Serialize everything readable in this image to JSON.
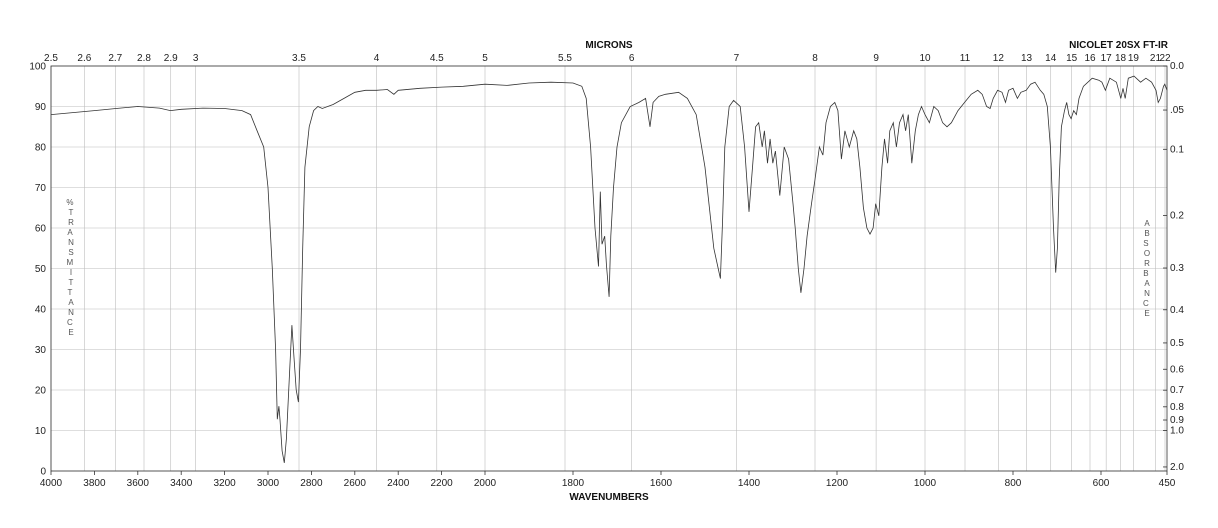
{
  "chart_data": {
    "type": "line",
    "title": "",
    "xlabel": "WAVENUMBERS",
    "top_xlabel": "MICRONS",
    "instrument": "NICOLET 20SX FT-IR",
    "ylabel_left": "% TRANSMITTANCE",
    "ylabel_right": "ABSORBANCE",
    "xlim": [
      4000,
      450
    ],
    "ylim": [
      0,
      100
    ],
    "grid": true,
    "x_ticks": [
      {
        "v": 4000,
        "t": "4000"
      },
      {
        "v": 3800,
        "t": "3800"
      },
      {
        "v": 3600,
        "t": "3600"
      },
      {
        "v": 3400,
        "t": "3400"
      },
      {
        "v": 3200,
        "t": "3200"
      },
      {
        "v": 3000,
        "t": "3000"
      },
      {
        "v": 2800,
        "t": "2800"
      },
      {
        "v": 2600,
        "t": "2600"
      },
      {
        "v": 2400,
        "t": "2400"
      },
      {
        "v": 2200,
        "t": "2200"
      },
      {
        "v": 2000,
        "t": "2000"
      },
      {
        "v": 1800,
        "t": "1800"
      },
      {
        "v": 1600,
        "t": "1600"
      },
      {
        "v": 1400,
        "t": "1400"
      },
      {
        "v": 1200,
        "t": "1200"
      },
      {
        "v": 1000,
        "t": "1000"
      },
      {
        "v": 800,
        "t": "800"
      },
      {
        "v": 600,
        "t": "600"
      },
      {
        "v": 450,
        "t": "450"
      }
    ],
    "micron_ticks": [
      {
        "v": 2.5,
        "t": "2.5"
      },
      {
        "v": 2.6,
        "t": "2.6"
      },
      {
        "v": 2.7,
        "t": "2.7"
      },
      {
        "v": 2.8,
        "t": "2.8"
      },
      {
        "v": 2.9,
        "t": "2.9"
      },
      {
        "v": 3,
        "t": "3"
      },
      {
        "v": 3.5,
        "t": "3.5"
      },
      {
        "v": 4,
        "t": "4"
      },
      {
        "v": 4.5,
        "t": "4.5"
      },
      {
        "v": 5,
        "t": "5"
      },
      {
        "v": 5.5,
        "t": "5.5"
      },
      {
        "v": 6,
        "t": "6"
      },
      {
        "v": 7,
        "t": "7"
      },
      {
        "v": 8,
        "t": "8"
      },
      {
        "v": 9,
        "t": "9"
      },
      {
        "v": 10,
        "t": "10"
      },
      {
        "v": 11,
        "t": "11"
      },
      {
        "v": 12,
        "t": "12"
      },
      {
        "v": 13,
        "t": "13"
      },
      {
        "v": 14,
        "t": "14"
      },
      {
        "v": 15,
        "t": "15"
      },
      {
        "v": 16,
        "t": "16"
      },
      {
        "v": 17,
        "t": "17"
      },
      {
        "v": 18,
        "t": "18"
      },
      {
        "v": 19,
        "t": "19"
      },
      {
        "v": 21,
        "t": "21"
      },
      {
        "v": 22,
        "t": "22"
      }
    ],
    "y_ticks": [
      0,
      10,
      20,
      30,
      40,
      50,
      60,
      70,
      80,
      90,
      100
    ],
    "absorbance_ticks": [
      {
        "v": 0.0,
        "t": "0.0"
      },
      {
        "v": 0.05,
        "t": ".05"
      },
      {
        "v": 0.1,
        "t": "0.1"
      },
      {
        "v": 0.2,
        "t": "0.2"
      },
      {
        "v": 0.3,
        "t": "0.3"
      },
      {
        "v": 0.4,
        "t": "0.4"
      },
      {
        "v": 0.5,
        "t": "0.5"
      },
      {
        "v": 0.6,
        "t": "0.6"
      },
      {
        "v": 0.7,
        "t": "0.7"
      },
      {
        "v": 0.8,
        "t": "0.8"
      },
      {
        "v": 0.9,
        "t": "0.9"
      },
      {
        "v": 1.0,
        "t": "1.0"
      },
      {
        "v": 2.0,
        "t": "2.0"
      }
    ],
    "series": [
      {
        "points": [
          [
            4000,
            88.0
          ],
          [
            3900,
            88.5
          ],
          [
            3800,
            89.0
          ],
          [
            3700,
            89.5
          ],
          [
            3600,
            90.0
          ],
          [
            3500,
            89.6
          ],
          [
            3450,
            89.0
          ],
          [
            3400,
            89.3
          ],
          [
            3300,
            89.6
          ],
          [
            3200,
            89.5
          ],
          [
            3120,
            89.0
          ],
          [
            3080,
            88.0
          ],
          [
            3050,
            84.0
          ],
          [
            3020,
            80.0
          ],
          [
            3000,
            70.0
          ],
          [
            2980,
            50.0
          ],
          [
            2965,
            30.0
          ],
          [
            2957,
            12.8
          ],
          [
            2950,
            16.0
          ],
          [
            2945,
            13.0
          ],
          [
            2935,
            5.0
          ],
          [
            2925,
            2.0
          ],
          [
            2915,
            8.0
          ],
          [
            2900,
            25.0
          ],
          [
            2890,
            36.0
          ],
          [
            2880,
            28.0
          ],
          [
            2870,
            20.0
          ],
          [
            2860,
            17.0
          ],
          [
            2850,
            30.0
          ],
          [
            2840,
            55.0
          ],
          [
            2830,
            75.0
          ],
          [
            2810,
            85.0
          ],
          [
            2790,
            89.0
          ],
          [
            2770,
            90.0
          ],
          [
            2750,
            89.5
          ],
          [
            2700,
            90.5
          ],
          [
            2650,
            92.0
          ],
          [
            2600,
            93.5
          ],
          [
            2550,
            94.0
          ],
          [
            2500,
            94.0
          ],
          [
            2450,
            94.2
          ],
          [
            2420,
            93.0
          ],
          [
            2400,
            94.0
          ],
          [
            2300,
            94.5
          ],
          [
            2200,
            94.8
          ],
          [
            2100,
            95.0
          ],
          [
            2000,
            95.5
          ],
          [
            1950,
            95.2
          ],
          [
            1900,
            95.8
          ],
          [
            1850,
            96.0
          ],
          [
            1800,
            95.8
          ],
          [
            1780,
            95.0
          ],
          [
            1770,
            92.0
          ],
          [
            1760,
            80.0
          ],
          [
            1750,
            60.0
          ],
          [
            1742,
            50.5
          ],
          [
            1738,
            69.0
          ],
          [
            1734,
            56.0
          ],
          [
            1728,
            58.0
          ],
          [
            1724,
            51.0
          ],
          [
            1718,
            43.0
          ],
          [
            1714,
            58.0
          ],
          [
            1708,
            70.0
          ],
          [
            1700,
            80.0
          ],
          [
            1690,
            86.0
          ],
          [
            1670,
            90.0
          ],
          [
            1650,
            91.0
          ],
          [
            1635,
            92.0
          ],
          [
            1625,
            85.0
          ],
          [
            1618,
            91.0
          ],
          [
            1605,
            92.5
          ],
          [
            1590,
            93.0
          ],
          [
            1560,
            93.5
          ],
          [
            1540,
            92.0
          ],
          [
            1520,
            88.0
          ],
          [
            1500,
            75.0
          ],
          [
            1480,
            55.0
          ],
          [
            1470,
            50.0
          ],
          [
            1465,
            47.5
          ],
          [
            1460,
            62.0
          ],
          [
            1455,
            80.0
          ],
          [
            1445,
            90.0
          ],
          [
            1435,
            91.5
          ],
          [
            1420,
            90.0
          ],
          [
            1410,
            80.0
          ],
          [
            1400,
            64.0
          ],
          [
            1392,
            75.0
          ],
          [
            1385,
            85.0
          ],
          [
            1378,
            86.0
          ],
          [
            1370,
            80.0
          ],
          [
            1365,
            84.0
          ],
          [
            1358,
            76.0
          ],
          [
            1352,
            82.0
          ],
          [
            1346,
            76.0
          ],
          [
            1340,
            79.0
          ],
          [
            1330,
            68.0
          ],
          [
            1320,
            80.0
          ],
          [
            1310,
            77.0
          ],
          [
            1300,
            66.0
          ],
          [
            1295,
            60.0
          ],
          [
            1288,
            50.0
          ],
          [
            1282,
            44.0
          ],
          [
            1275,
            50.0
          ],
          [
            1268,
            58.0
          ],
          [
            1258,
            66.0
          ],
          [
            1250,
            72.0
          ],
          [
            1240,
            80.0
          ],
          [
            1232,
            78.0
          ],
          [
            1225,
            86.0
          ],
          [
            1215,
            90.0
          ],
          [
            1205,
            91.0
          ],
          [
            1198,
            89.0
          ],
          [
            1190,
            77.0
          ],
          [
            1182,
            84.0
          ],
          [
            1172,
            80.0
          ],
          [
            1162,
            84.0
          ],
          [
            1155,
            82.0
          ],
          [
            1148,
            75.0
          ],
          [
            1140,
            65.0
          ],
          [
            1132,
            60.0
          ],
          [
            1125,
            58.5
          ],
          [
            1118,
            60.0
          ],
          [
            1112,
            66.0
          ],
          [
            1105,
            63.0
          ],
          [
            1098,
            75.0
          ],
          [
            1092,
            82.0
          ],
          [
            1085,
            76.0
          ],
          [
            1080,
            84.0
          ],
          [
            1072,
            86.0
          ],
          [
            1065,
            80.0
          ],
          [
            1058,
            86.0
          ],
          [
            1050,
            88.0
          ],
          [
            1044,
            84.0
          ],
          [
            1038,
            88.0
          ],
          [
            1030,
            76.0
          ],
          [
            1022,
            84.0
          ],
          [
            1015,
            88.0
          ],
          [
            1008,
            90.0
          ],
          [
            1000,
            88.0
          ],
          [
            990,
            86.0
          ],
          [
            980,
            90.0
          ],
          [
            970,
            89.0
          ],
          [
            960,
            86.0
          ],
          [
            950,
            85.0
          ],
          [
            940,
            86.0
          ],
          [
            925,
            89.0
          ],
          [
            910,
            91.0
          ],
          [
            895,
            93.0
          ],
          [
            880,
            94.0
          ],
          [
            870,
            93.0
          ],
          [
            860,
            90.0
          ],
          [
            852,
            89.5
          ],
          [
            845,
            92.0
          ],
          [
            835,
            94.0
          ],
          [
            825,
            93.5
          ],
          [
            817,
            91.0
          ],
          [
            810,
            94.0
          ],
          [
            800,
            94.5
          ],
          [
            790,
            92.0
          ],
          [
            782,
            93.5
          ],
          [
            770,
            94.0
          ],
          [
            760,
            95.5
          ],
          [
            750,
            96.0
          ],
          [
            738,
            94.0
          ],
          [
            730,
            93.0
          ],
          [
            722,
            90.0
          ],
          [
            715,
            80.0
          ],
          [
            708,
            60.0
          ],
          [
            703,
            49.0
          ],
          [
            699,
            55.0
          ],
          [
            695,
            72.0
          ],
          [
            690,
            85.0
          ],
          [
            683,
            89.0
          ],
          [
            678,
            91.0
          ],
          [
            673,
            88.0
          ],
          [
            668,
            87.0
          ],
          [
            662,
            89.0
          ],
          [
            656,
            88.0
          ],
          [
            650,
            92.0
          ],
          [
            640,
            95.0
          ],
          [
            620,
            97.0
          ],
          [
            605,
            96.5
          ],
          [
            598,
            96.0
          ],
          [
            590,
            94.0
          ],
          [
            580,
            97.0
          ],
          [
            565,
            96.0
          ],
          [
            555,
            92.0
          ],
          [
            550,
            94.5
          ],
          [
            545,
            92.0
          ],
          [
            538,
            97.0
          ],
          [
            525,
            97.5
          ],
          [
            510,
            96.0
          ],
          [
            498,
            97.0
          ],
          [
            485,
            96.0
          ],
          [
            475,
            94.0
          ],
          [
            470,
            91.0
          ],
          [
            465,
            92.0
          ],
          [
            458,
            95.0
          ],
          [
            455,
            95.5
          ],
          [
            450,
            94.0
          ]
        ]
      }
    ]
  }
}
